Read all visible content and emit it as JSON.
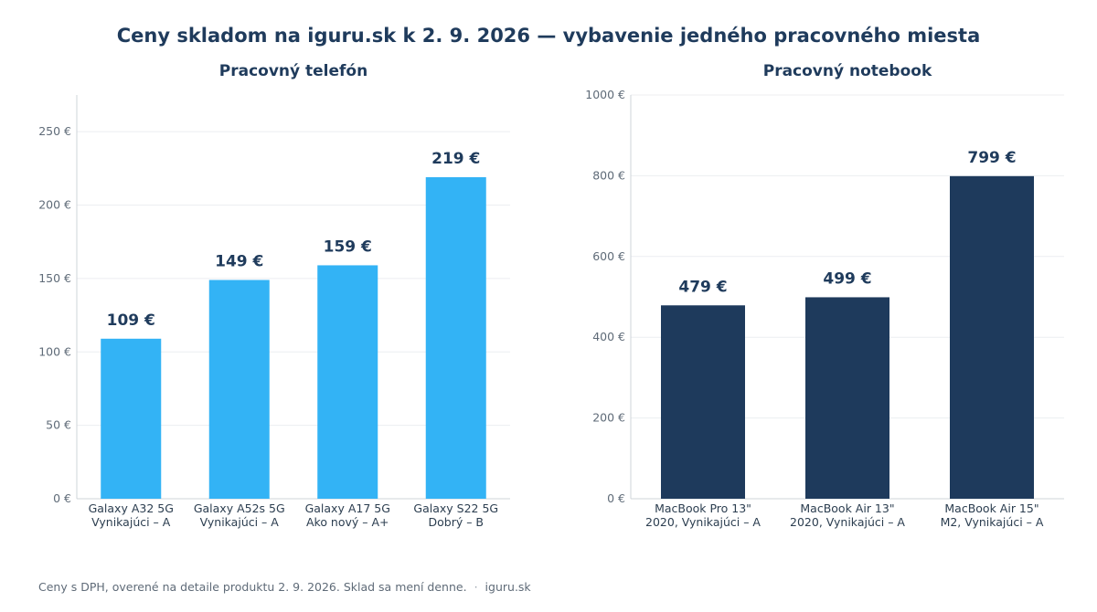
{
  "title": "Ceny skladom na iguru.sk k 2. 9. 2026 — vybavenie jedného pracovného miesta",
  "footer": {
    "note": "Ceny s DPH, overené na detaile produktu 2. 9. 2026. Sklad sa mení denne.",
    "separator": "·",
    "source": "iguru.sk"
  },
  "chart_data": [
    {
      "type": "bar",
      "title": "Pracovný telefón",
      "categories": [
        [
          "Galaxy A32 5G",
          "Vynikajúci – A"
        ],
        [
          "Galaxy A52s 5G",
          "Vynikajúci – A"
        ],
        [
          "Galaxy A17 5G",
          "Ako nový – A+"
        ],
        [
          "Galaxy S22 5G",
          "Dobrý – B"
        ]
      ],
      "values": [
        109,
        149,
        159,
        219
      ],
      "value_labels": [
        "109 €",
        "149 €",
        "159 €",
        "219 €"
      ],
      "ylim": [
        0,
        275
      ],
      "yticks": [
        0,
        50,
        100,
        150,
        200,
        250
      ],
      "ytick_labels": [
        "0 €",
        "50 €",
        "100 €",
        "150 €",
        "200 €",
        "250 €"
      ],
      "color": "#33b3f5",
      "grid": true
    },
    {
      "type": "bar",
      "title": "Pracovný notebook",
      "categories": [
        [
          "MacBook Pro 13\"",
          "2020, Vynikajúci – A"
        ],
        [
          "MacBook Air 13\"",
          "2020, Vynikajúci – A"
        ],
        [
          "MacBook Air 15\"",
          "M2, Vynikajúci – A"
        ]
      ],
      "values": [
        479,
        499,
        799
      ],
      "value_labels": [
        "479 €",
        "499 €",
        "799 €"
      ],
      "ylim": [
        0,
        1000
      ],
      "yticks": [
        0,
        200,
        400,
        600,
        800,
        1000
      ],
      "ytick_labels": [
        "0 €",
        "200 €",
        "400 €",
        "600 €",
        "800 €",
        "1000 €"
      ],
      "color": "#1e3a5c",
      "grid": true
    }
  ]
}
